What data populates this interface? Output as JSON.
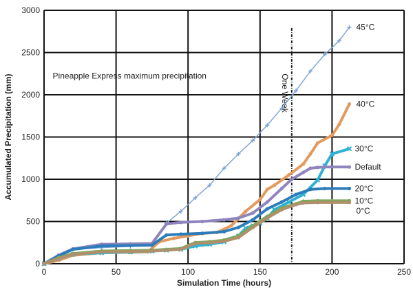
{
  "chart_data": {
    "type": "line",
    "title": "",
    "xlabel": "Simulation Time (hours)",
    "ylabel": "Accumulated Precipitation (mm)",
    "xlim": [
      0,
      250
    ],
    "ylim": [
      0,
      3000
    ],
    "xticks": [
      0,
      50,
      100,
      150,
      200,
      250
    ],
    "yticks": [
      0,
      500,
      1000,
      1500,
      2000,
      2500,
      3000
    ],
    "grid": true,
    "annotation_text": "Pineapple Express maximum precipitation",
    "vline": {
      "x": 172,
      "label": "One Week"
    },
    "series": [
      {
        "name": "45°C",
        "color": "#7ea6d6",
        "marker": "plus",
        "x": [
          0,
          10,
          20,
          40,
          60,
          75,
          85,
          95,
          105,
          115,
          125,
          135,
          145,
          155,
          165,
          175,
          185,
          195,
          205,
          212
        ],
        "y": [
          0,
          80,
          170,
          190,
          205,
          230,
          480,
          620,
          780,
          930,
          1130,
          1300,
          1460,
          1640,
          1840,
          2050,
          2280,
          2480,
          2640,
          2800
        ]
      },
      {
        "name": "40°C",
        "color": "#e39a5e",
        "marker": "dot",
        "x": [
          0,
          10,
          20,
          40,
          60,
          72,
          80,
          90,
          100,
          110,
          120,
          130,
          140,
          150,
          155,
          160,
          170,
          180,
          185,
          190,
          200,
          205,
          212
        ],
        "y": [
          0,
          40,
          100,
          130,
          135,
          140,
          260,
          300,
          330,
          360,
          370,
          450,
          620,
          760,
          880,
          930,
          1050,
          1180,
          1300,
          1430,
          1520,
          1650,
          1890
        ]
      },
      {
        "name": "30°C",
        "color": "#2fb2d2",
        "marker": "cross",
        "x": [
          0,
          10,
          20,
          40,
          60,
          75,
          85,
          95,
          105,
          115,
          125,
          135,
          140,
          145,
          150,
          155,
          160,
          170,
          180,
          190,
          195,
          200,
          212
        ],
        "y": [
          0,
          60,
          110,
          130,
          140,
          150,
          160,
          170,
          210,
          230,
          260,
          330,
          420,
          450,
          480,
          540,
          640,
          730,
          820,
          990,
          1160,
          1300,
          1360
        ]
      },
      {
        "name": "Default",
        "color": "#8f84bd",
        "marker": "dot",
        "x": [
          0,
          10,
          20,
          40,
          60,
          75,
          85,
          95,
          110,
          125,
          135,
          145,
          155,
          165,
          172,
          180,
          185,
          190,
          195,
          212
        ],
        "y": [
          0,
          100,
          175,
          230,
          235,
          240,
          470,
          490,
          500,
          520,
          540,
          600,
          730,
          890,
          1000,
          1080,
          1130,
          1140,
          1145,
          1145
        ]
      },
      {
        "name": "20°C",
        "color": "#2c7cba",
        "marker": "dot",
        "x": [
          0,
          10,
          20,
          40,
          60,
          75,
          85,
          95,
          110,
          125,
          135,
          145,
          155,
          165,
          175,
          185,
          195,
          212
        ],
        "y": [
          0,
          90,
          170,
          210,
          215,
          220,
          340,
          350,
          360,
          380,
          430,
          520,
          650,
          730,
          820,
          880,
          890,
          890
        ]
      },
      {
        "name": "10°C",
        "color": "#7da85c",
        "marker": "dot",
        "x": [
          0,
          10,
          20,
          40,
          60,
          75,
          85,
          95,
          105,
          115,
          125,
          135,
          145,
          155,
          165,
          175,
          180,
          190,
          200,
          212
        ],
        "y": [
          0,
          70,
          120,
          150,
          155,
          160,
          170,
          180,
          250,
          260,
          280,
          330,
          450,
          560,
          660,
          710,
          740,
          745,
          745,
          745
        ]
      },
      {
        "name": "0°C",
        "color": "#b0906a",
        "marker": "dot",
        "x": [
          0,
          10,
          20,
          40,
          60,
          75,
          85,
          95,
          105,
          115,
          125,
          135,
          145,
          155,
          165,
          175,
          180,
          190,
          200,
          212
        ],
        "y": [
          0,
          60,
          110,
          140,
          145,
          150,
          160,
          170,
          240,
          250,
          265,
          310,
          430,
          540,
          640,
          700,
          720,
          725,
          725,
          725
        ]
      }
    ],
    "label_positions_note": "labels drawn at right end of each series"
  }
}
